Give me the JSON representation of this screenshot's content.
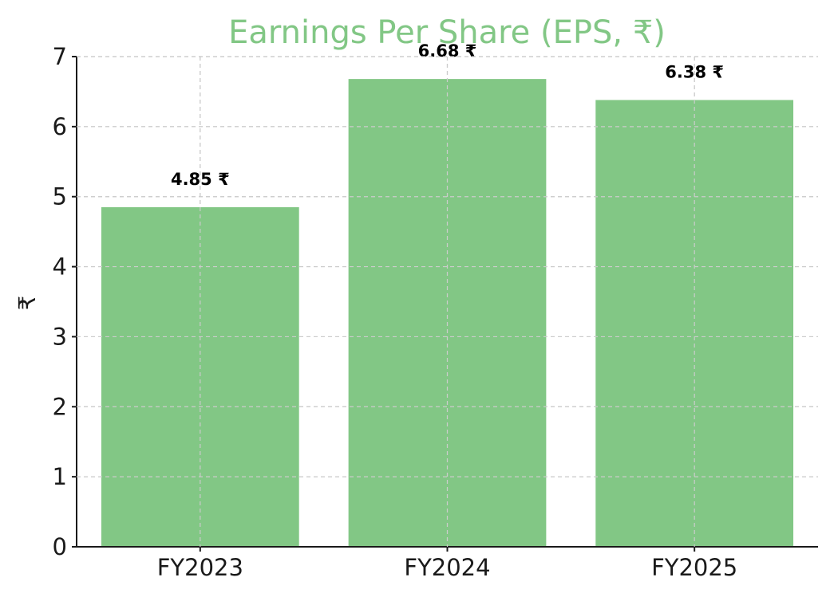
{
  "chart_data": {
    "type": "bar",
    "title": "Earnings Per Share (EPS, ₹)",
    "xlabel": "",
    "ylabel": "₹",
    "categories": [
      "FY2023",
      "FY2024",
      "FY2025"
    ],
    "values": [
      4.85,
      6.68,
      6.38
    ],
    "value_labels": [
      "4.85 ₹",
      "6.68 ₹",
      "6.38 ₹"
    ],
    "ylim": [
      0,
      7
    ],
    "yticks": [
      0,
      1,
      2,
      3,
      4,
      5,
      6,
      7
    ],
    "ytick_labels": [
      "0",
      "1",
      "2",
      "3",
      "4",
      "5",
      "6",
      "7"
    ],
    "grid": true,
    "colors": {
      "bar": "#82c785",
      "title": "#82c785"
    }
  }
}
